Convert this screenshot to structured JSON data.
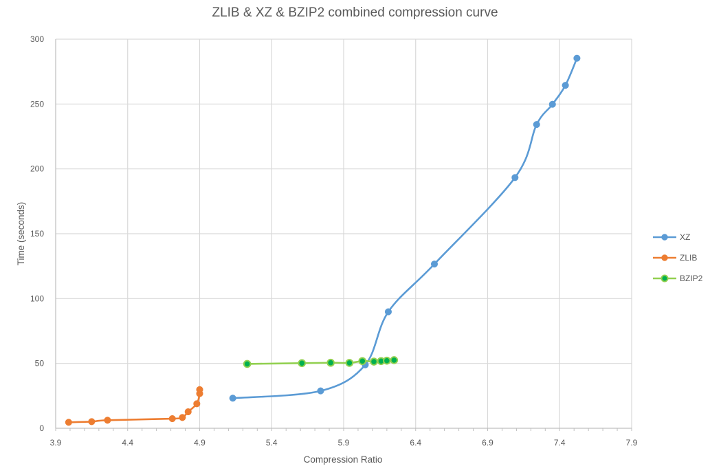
{
  "chart_data": {
    "type": "scatter",
    "subtype": "scatter-smooth-lines-with-markers",
    "title": "ZLIB & XZ & BZIP2 combined compression curve",
    "xlabel": "Compression Ratio",
    "ylabel": "Time (seconds)",
    "xlim": [
      3.9,
      7.9
    ],
    "ylim": [
      0,
      300
    ],
    "x_ticks": [
      3.9,
      4.4,
      4.9,
      5.4,
      5.9,
      6.4,
      6.9,
      7.4,
      7.9
    ],
    "x_tick_labels": [
      "3.9",
      "4.4",
      "4.9",
      "5.4",
      "5.9",
      "6.4",
      "6.9",
      "7.4",
      "7.9"
    ],
    "y_ticks": [
      0,
      50,
      100,
      150,
      200,
      250,
      300
    ],
    "y_tick_labels": [
      "0",
      "50",
      "100",
      "150",
      "200",
      "250",
      "300"
    ],
    "grid": true,
    "legend_position": "right",
    "series": [
      {
        "name": "XZ",
        "color": "#5B9BD5",
        "marker": "circle",
        "smooth": true,
        "points": [
          [
            5.13,
            23.2
          ],
          [
            5.74,
            28.8
          ],
          [
            6.05,
            48.9
          ],
          [
            6.21,
            89.8
          ],
          [
            6.53,
            126.6
          ],
          [
            7.09,
            193.3
          ],
          [
            7.24,
            234.2
          ],
          [
            7.35,
            249.8
          ],
          [
            7.44,
            264.4
          ],
          [
            7.52,
            285.3
          ]
        ]
      },
      {
        "name": "ZLIB",
        "color": "#ED7D31",
        "marker": "circle",
        "smooth": true,
        "points": [
          [
            3.99,
            4.6
          ],
          [
            4.15,
            5.1
          ],
          [
            4.26,
            6.2
          ],
          [
            4.71,
            7.4
          ],
          [
            4.78,
            8.3
          ],
          [
            4.82,
            12.7
          ],
          [
            4.88,
            18.9
          ],
          [
            4.9,
            26.7
          ],
          [
            4.9,
            29.8
          ]
        ]
      },
      {
        "name": "BZIP2",
        "color": "#92D050",
        "marker_fill": "#00B050",
        "marker": "circle",
        "smooth": true,
        "points": [
          [
            5.23,
            49.6
          ],
          [
            5.61,
            50.2
          ],
          [
            5.81,
            50.5
          ],
          [
            5.94,
            50.4
          ],
          [
            6.03,
            51.8
          ],
          [
            6.11,
            51.4
          ],
          [
            6.16,
            51.8
          ],
          [
            6.2,
            52.1
          ],
          [
            6.25,
            52.5
          ]
        ]
      }
    ]
  },
  "legend": {
    "items": [
      {
        "label": "XZ"
      },
      {
        "label": "ZLIB"
      },
      {
        "label": "BZIP2"
      }
    ]
  }
}
